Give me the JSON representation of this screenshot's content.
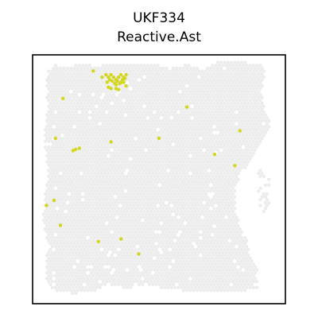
{
  "figure": {
    "title_line1": "UKF334",
    "title_line2": "Reactive.Ast"
  },
  "colors": {
    "background_spot": "#ececec",
    "highlight_spot": "#d3d61c",
    "frame": "#000000"
  },
  "chart_data": {
    "type": "scatter",
    "title": "UKF334\nReactive.Ast",
    "xlabel": "",
    "ylabel": "",
    "grid": false,
    "legend": "none",
    "xlim": [
      0,
      100
    ],
    "ylim": [
      0,
      100
    ],
    "axis_ticks": "hidden",
    "series": [
      {
        "role": "background tissue spots",
        "color": "#ececec",
        "regions": [
          {
            "kind": "tissue-polygon",
            "outline": [
              [
                6,
                93
              ],
              [
                8,
                96
              ],
              [
                14,
                95
              ],
              [
                20,
                97
              ],
              [
                26,
                95
              ],
              [
                30,
                97
              ],
              [
                38,
                96
              ],
              [
                46,
                97
              ],
              [
                54,
                95
              ],
              [
                62,
                96
              ],
              [
                68,
                94
              ],
              [
                73,
                97
              ],
              [
                84,
                97
              ],
              [
                91,
                96
              ],
              [
                92,
                90
              ],
              [
                90,
                86
              ],
              [
                92,
                78
              ],
              [
                94,
                72
              ],
              [
                91,
                66
              ],
              [
                88,
                60
              ],
              [
                82,
                52
              ],
              [
                80,
                44
              ],
              [
                80,
                38
              ],
              [
                82,
                32
              ],
              [
                85,
                26
              ],
              [
                86,
                20
              ],
              [
                89,
                14
              ],
              [
                89,
                6
              ],
              [
                82,
                5
              ],
              [
                72,
                5
              ],
              [
                62,
                5
              ],
              [
                52,
                6
              ],
              [
                45,
                8
              ],
              [
                38,
                6
              ],
              [
                30,
                8
              ],
              [
                24,
                5
              ],
              [
                16,
                4
              ],
              [
                10,
                5
              ],
              [
                6,
                7
              ],
              [
                5,
                14
              ],
              [
                6,
                24
              ],
              [
                4,
                34
              ],
              [
                5,
                44
              ],
              [
                6,
                54
              ],
              [
                5,
                62
              ],
              [
                5,
                72
              ],
              [
                6,
                80
              ],
              [
                5,
                88
              ]
            ]
          },
          {
            "kind": "scattered-strip",
            "outline": [
              [
                90,
                55
              ],
              [
                94,
                50
              ],
              [
                94,
                38
              ],
              [
                92,
                36
              ],
              [
                89,
                40
              ],
              [
                88,
                50
              ]
            ]
          }
        ]
      },
      {
        "role": "Reactive.Ast spots",
        "color": "#d3d61c",
        "x": [
          24,
          27.5,
          29,
          30,
          31,
          32,
          33,
          34,
          35,
          36,
          37,
          30.5,
          31.5,
          33.5,
          35.5,
          32.5,
          34.5,
          29.5,
          36.5,
          30,
          33,
          35,
          31,
          33,
          34,
          37,
          36,
          61,
          82,
          72,
          80,
          50,
          31,
          12,
          9,
          17,
          18.5,
          16,
          5.5,
          8.5,
          11,
          26,
          35,
          42
        ],
        "y": [
          93.5,
          91,
          92,
          91,
          92,
          91,
          90,
          91,
          92,
          91,
          92,
          90,
          89.5,
          89.5,
          90,
          88.5,
          88.5,
          89,
          90.5,
          87,
          88,
          89,
          86.5,
          86.5,
          86,
          87.5,
          89,
          79,
          69.5,
          60,
          55.5,
          66.5,
          65,
          82.5,
          66.5,
          62,
          62.5,
          61.5,
          39.5,
          41.5,
          31.5,
          25,
          26,
          20
        ]
      }
    ]
  }
}
